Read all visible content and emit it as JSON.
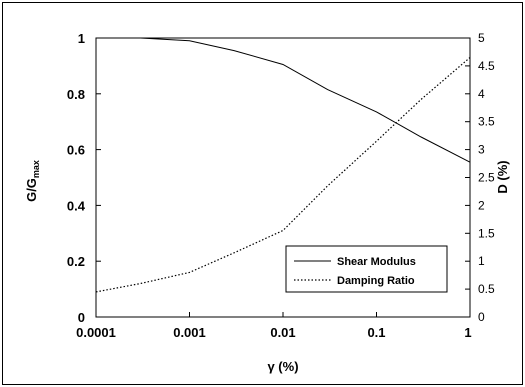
{
  "chart_data": {
    "type": "line",
    "x_scale": "log",
    "xlabel": "γ (%)",
    "ylabel_left": "G/Gmax",
    "ylabel_left_main": "G/G",
    "ylabel_left_sub": "max",
    "ylabel_right": "D (%)",
    "xlim": [
      0.0001,
      1
    ],
    "ylim_left": [
      0,
      1
    ],
    "ylim_right": [
      0,
      5
    ],
    "x_ticks": [
      {
        "value": 0.0001,
        "label": "0.0001"
      },
      {
        "value": 0.001,
        "label": "0.001"
      },
      {
        "value": 0.01,
        "label": "0.01"
      },
      {
        "value": 0.1,
        "label": "0.1"
      },
      {
        "value": 1,
        "label": "1"
      }
    ],
    "y_ticks_left": [
      "0",
      "0.2",
      "0.4",
      "0.6",
      "0.8",
      "1"
    ],
    "y_ticks_right": [
      "0",
      "0.5",
      "1",
      "1.5",
      "2",
      "2.5",
      "3",
      "3.5",
      "4",
      "4.5",
      "5"
    ],
    "legend_position": "bottom-right",
    "grid": false,
    "series": [
      {
        "name": "Shear Modulus",
        "axis": "left",
        "style": "solid",
        "x": [
          0.0001,
          0.0003,
          0.001,
          0.003,
          0.01,
          0.03,
          0.1,
          0.3,
          1
        ],
        "y": [
          1.0,
          1.0,
          0.99,
          0.955,
          0.905,
          0.815,
          0.735,
          0.645,
          0.555
        ]
      },
      {
        "name": "Damping Ratio",
        "axis": "right",
        "style": "dotted",
        "x": [
          0.0001,
          0.0003,
          0.001,
          0.003,
          0.01,
          0.03,
          0.1,
          0.3,
          1
        ],
        "y": [
          0.45,
          0.6,
          0.8,
          1.15,
          1.55,
          2.35,
          3.15,
          3.9,
          4.65
        ]
      }
    ]
  }
}
